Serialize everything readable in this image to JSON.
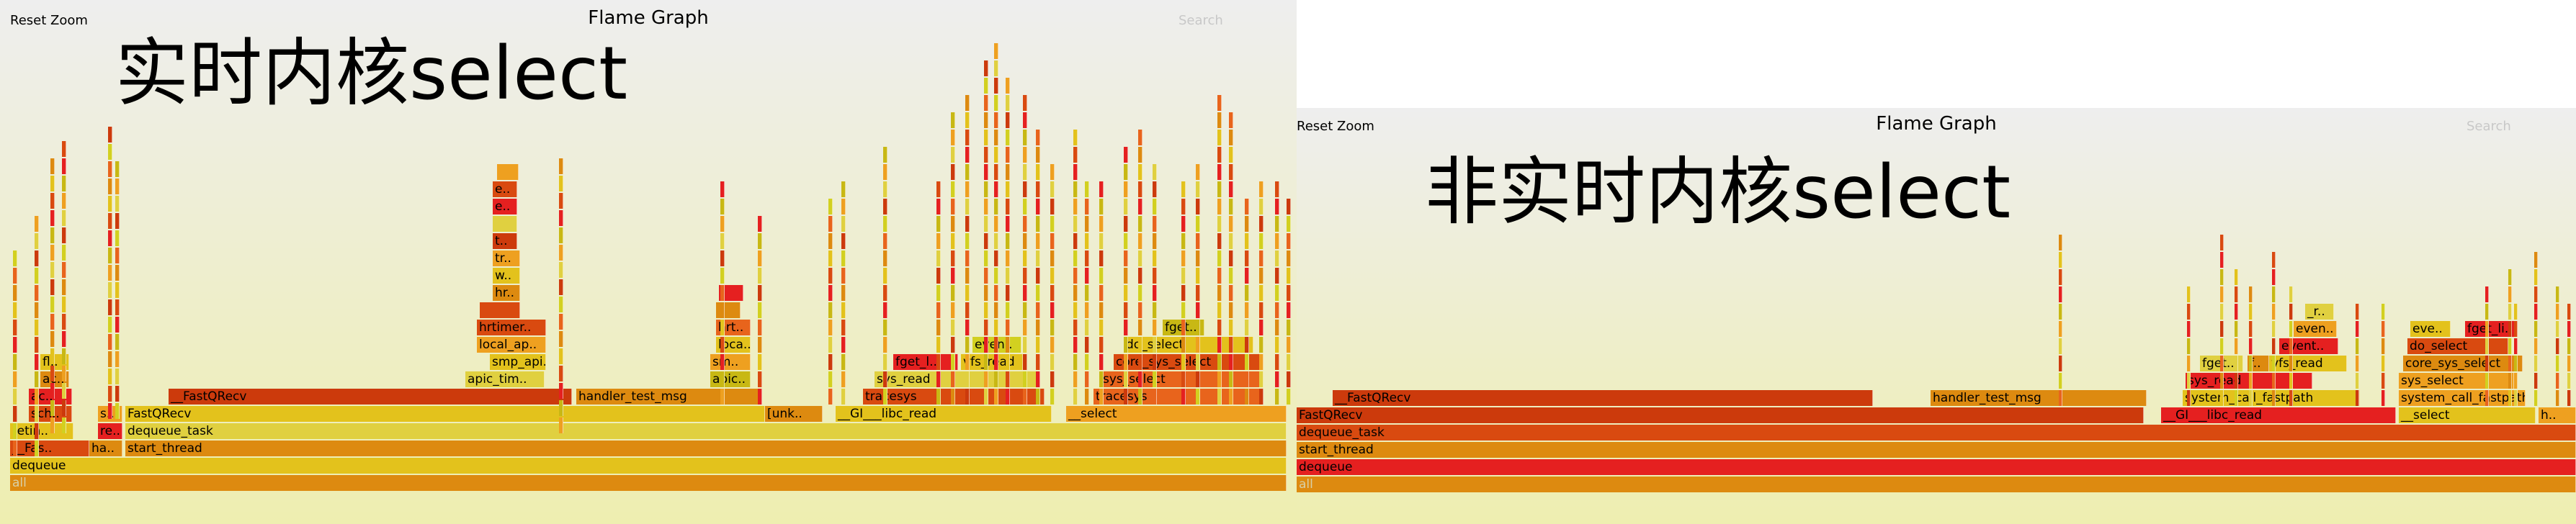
{
  "left": {
    "reset_zoom": "Reset Zoom",
    "title": "Flame Graph",
    "search": "Search",
    "caption": "实时内核select",
    "frame_labels": {
      "all": "all",
      "dequeue": "dequeue",
      "fas": "__Fas..",
      "ha": "ha..",
      "start_thread": "start_thread",
      "retin": "retin..",
      "re": "re..",
      "dequeue_task": "dequeue_task",
      "sch": "sch..",
      "s": "s..",
      "fastqrecv_a": "FastQRecv",
      "__fastqrecv": "__FastQRecv",
      "handler_test_msg": "handler_test_msg",
      "unk": "[unk..",
      "gi_libc_read": "__GI___libc_read",
      "select": "__select",
      "tracesys_a": "tracesys",
      "tracesys_b": "tracesys",
      "sys_read": "sys_read",
      "sys_select": "sys_select",
      "apic_tim": "apic_tim..",
      "smp_api": "smp_api..",
      "local_ap": "local_ap..",
      "hrtimer": "hrtimer..",
      "apic": "apic..",
      "sm": "sm..",
      "loca": "loca..",
      "hrt": "hrt..",
      "fget_l": "fget_l..",
      "vfs_read": "vfs_read",
      "even": "even..",
      "core_sys_select": "core_sys_select",
      "do_select": "do_select",
      "fget": "fget..",
      "hr": "hr..",
      "w": "w..",
      "tr": "tr..",
      "t": "t..",
      "ac": "ac..",
      "e1": "e..",
      "e2": "e..",
      "ac2": "ac..",
      "fl": "fl.."
    }
  },
  "right": {
    "reset_zoom": "Reset Zoom",
    "title": "Flame Graph",
    "search": "Search",
    "caption": "非实时内核select",
    "frame_labels": {
      "all": "all",
      "dequeue": "dequeue",
      "start_thread": "start_thread",
      "dequeue_task": "dequeue_task",
      "fastqrecv": "FastQRecv",
      "gi_libc_read": "__GI___libc_read",
      "select": "__select",
      "h": "h..",
      "__fastqrecv": "__FastQRecv",
      "handler_test_msg": "handler_test_msg",
      "system_call_fastpath_a": "system_call_fastpath",
      "system_call_fastpath_b": "system_call_fastpath",
      "sys_read": "sys_read",
      "sys_select": "sys_select",
      "fget": "fget..",
      "f": "f..",
      "vfs_read": "vfs_read",
      "core_sys_select": "core_sys_select",
      "event": "event..",
      "do_select": "do_select",
      "even": "even..",
      "eve": "eve..",
      "fget_li": "fget_li..",
      "r": "_r.."
    }
  },
  "palette": [
    "#e8641c",
    "#dd8a10",
    "#e3c21c",
    "#d94a10",
    "#e52020",
    "#c8b814",
    "#eea020",
    "#e0d040",
    "#cc3a0c",
    "#d2d020"
  ]
}
